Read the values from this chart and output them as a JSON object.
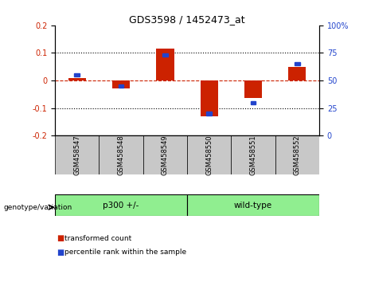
{
  "title": "GDS3598 / 1452473_at",
  "samples": [
    "GSM458547",
    "GSM458548",
    "GSM458549",
    "GSM458550",
    "GSM458551",
    "GSM458552"
  ],
  "red_values": [
    0.01,
    -0.03,
    0.115,
    -0.13,
    -0.065,
    0.05
  ],
  "blue_values_pct": [
    55,
    45,
    73,
    20,
    30,
    65
  ],
  "group_boundary": 3,
  "ylim_left": [
    -0.2,
    0.2
  ],
  "ylim_right": [
    0,
    100
  ],
  "yticks_left": [
    -0.2,
    -0.1,
    0.0,
    0.1,
    0.2
  ],
  "yticks_right": [
    0,
    25,
    50,
    75,
    100
  ],
  "ytick_labels_left": [
    "-0.2",
    "-0.1",
    "0",
    "0.1",
    "0.2"
  ],
  "ytick_labels_right": [
    "0",
    "25",
    "50",
    "75",
    "100%"
  ],
  "red_color": "#cc2200",
  "blue_color": "#2244cc",
  "bar_width": 0.4,
  "blue_bar_width": 0.12,
  "blue_bar_height": 0.012,
  "zero_line_color": "#cc2200",
  "grid_color": "#000000",
  "bg_color": "#ffffff",
  "plot_bg_color": "#ffffff",
  "label_transformed": "transformed count",
  "label_percentile": "percentile rank within the sample",
  "genotype_label": "genotype/variation",
  "group1_label": "p300 +/-",
  "group2_label": "wild-type",
  "group_bg": "#90ee90",
  "sample_cell_color": "#c8c8c8"
}
